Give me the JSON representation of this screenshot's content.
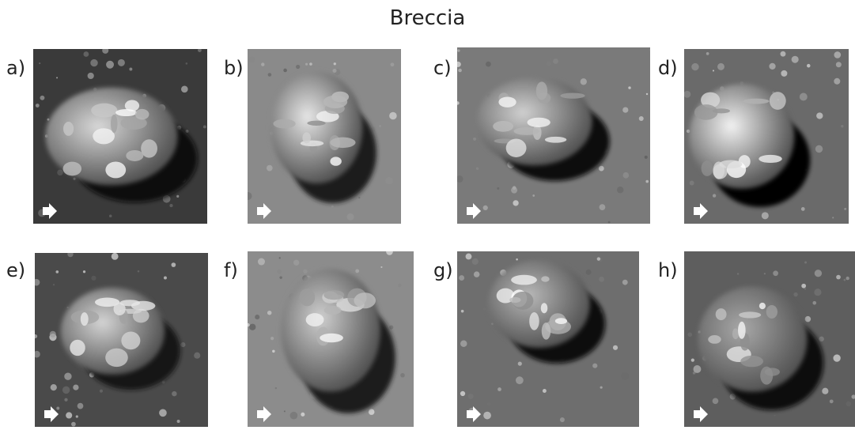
{
  "title": "Breccia",
  "panels": [
    {
      "label": "a)"
    },
    {
      "label": "b)"
    },
    {
      "label": "c)"
    },
    {
      "label": "d)"
    },
    {
      "label": "e)"
    },
    {
      "label": "f)"
    },
    {
      "label": "g)"
    },
    {
      "label": "h)"
    }
  ]
}
